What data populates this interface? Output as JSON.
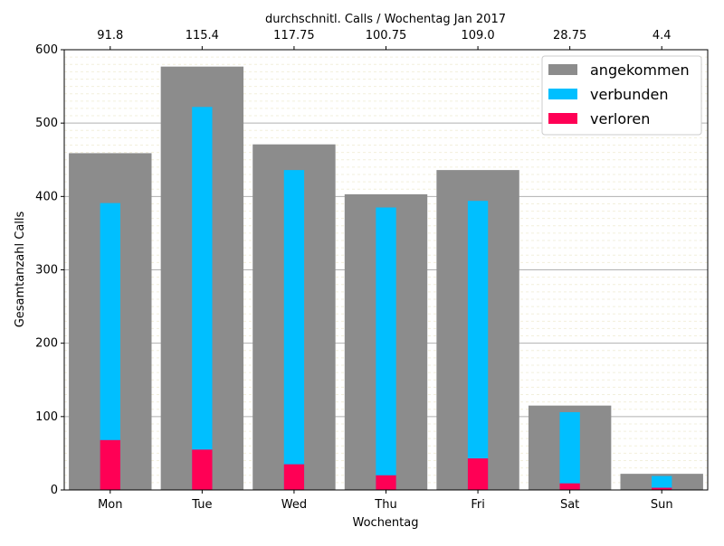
{
  "chart_data": {
    "type": "bar",
    "title": "durchschnitl. Calls / Wochentag Jan 2017",
    "xlabel": "Wochentag",
    "ylabel": "Gesamtanzahl Calls",
    "ylim": [
      0,
      600
    ],
    "yticks": [
      0,
      100,
      200,
      300,
      400,
      500,
      600
    ],
    "grid": true,
    "legend_position": "top-right",
    "categories": [
      "Mon",
      "Tue",
      "Wed",
      "Thu",
      "Fri",
      "Sat",
      "Sun"
    ],
    "top_axis_labels": [
      "91.8",
      "115.4",
      "117.75",
      "100.75",
      "109.0",
      "28.75",
      "4.4"
    ],
    "series": [
      {
        "name": "angekommen",
        "color": "#8c8c8c",
        "values": [
          459,
          577,
          471,
          403,
          436,
          115,
          22
        ]
      },
      {
        "name": "verbunden",
        "color": "#00bfff",
        "values": [
          391,
          522,
          436,
          385,
          394,
          106,
          19
        ]
      },
      {
        "name": "verloren",
        "color": "#ff0055",
        "values": [
          68,
          55,
          35,
          20,
          43,
          9,
          3
        ]
      }
    ]
  }
}
